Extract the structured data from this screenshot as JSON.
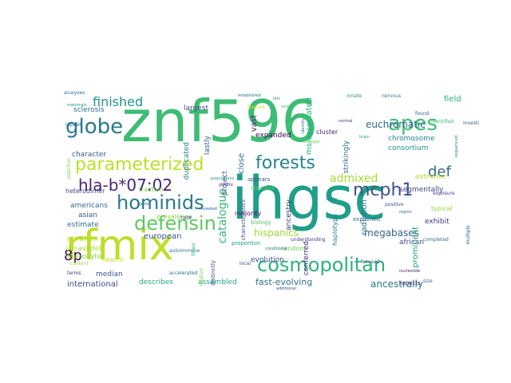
{
  "words": [
    {
      "text": "znf596",
      "color": "#3dbc74"
    },
    {
      "text": "ihgsc",
      "color": "#1f9e89"
    },
    {
      "text": "rfmix",
      "color": "#bddf26"
    },
    {
      "text": "parameterized",
      "color": "#bddf26"
    },
    {
      "text": "cosmopolitan",
      "color": "#2db27d"
    },
    {
      "text": "forests",
      "color": "#26828e"
    },
    {
      "text": "hominids",
      "color": "#2a788e"
    },
    {
      "text": "defensin",
      "color": "#5ec962"
    },
    {
      "text": "globe",
      "color": "#2a788e"
    },
    {
      "text": "apes",
      "color": "#3fbc73"
    },
    {
      "text": "mcph1",
      "color": "#3b528b"
    },
    {
      "text": "hla-b*07:02",
      "color": "#482475"
    },
    {
      "text": "admixed",
      "color": "#a8db34"
    },
    {
      "text": "def",
      "color": "#31688e"
    },
    {
      "text": "finished",
      "color": "#21918c"
    },
    {
      "text": "8p",
      "color": "#440154"
    },
    {
      "text": "catalogue",
      "color": "#35b779"
    },
    {
      "text": "megabases",
      "color": "#33638d"
    },
    {
      "text": "euchromatic",
      "color": "#31688e"
    },
    {
      "text": "hispanics",
      "color": "#a0da39"
    },
    {
      "text": "ancestrally",
      "color": "#2a788e"
    },
    {
      "text": "fast-evolving",
      "color": "#2d708e"
    },
    {
      "text": "international",
      "color": "#3e4989"
    },
    {
      "text": "describes",
      "color": "#22a884"
    },
    {
      "text": "assembled",
      "color": "#22a884"
    },
    {
      "text": "median",
      "color": "#3b528b"
    },
    {
      "text": "evolution",
      "color": "#3e4a89"
    },
    {
      "text": "chromosome",
      "color": "#26828e"
    },
    {
      "text": "consortium",
      "color": "#21918c"
    },
    {
      "text": "segmentally",
      "color": "#3e4989"
    },
    {
      "text": "african",
      "color": "#414487"
    },
    {
      "text": "random",
      "color": "#6ece58"
    },
    {
      "text": "conferred",
      "color": "#472d7b"
    },
    {
      "text": "ancestry",
      "color": "#443983"
    },
    {
      "text": "prominent",
      "color": "#1f9e89"
    },
    {
      "text": "radiation",
      "color": "#2c728e"
    },
    {
      "text": "exhibit",
      "color": "#46327e"
    },
    {
      "text": "typical",
      "color": "#95d840"
    },
    {
      "text": "field",
      "color": "#29af7f"
    },
    {
      "text": "extreme",
      "color": "#b5de2b"
    },
    {
      "text": "ms-associated",
      "color": "#25ab82"
    },
    {
      "text": "expanded",
      "color": "#440154"
    },
    {
      "text": "vast",
      "color": "#482878"
    },
    {
      "text": "close",
      "color": "#2c728e"
    },
    {
      "text": "project",
      "color": "#38588c"
    },
    {
      "text": "lastly",
      "color": "#33638d"
    },
    {
      "text": "largest",
      "color": "#3f4788"
    },
    {
      "text": "duplicated",
      "color": "#277f8e"
    },
    {
      "text": "european",
      "color": "#3b528b"
    },
    {
      "text": "prevalence",
      "color": "#86d549"
    },
    {
      "text": "fraction",
      "color": "#7ad151"
    },
    {
      "text": "heterodimer",
      "color": "#404688"
    },
    {
      "text": "americans",
      "color": "#2f6c8e"
    },
    {
      "text": "asian",
      "color": "#3a538b"
    },
    {
      "text": "character",
      "color": "#365c8d"
    },
    {
      "text": "sclerosis",
      "color": "#2d718e"
    },
    {
      "text": "estimate",
      "color": "#2e6f8e"
    },
    {
      "text": "leukocyte",
      "color": "#8bd646"
    },
    {
      "text": "northern",
      "color": "#b8de29"
    },
    {
      "text": "ultraviolet",
      "color": "#addc30"
    },
    {
      "text": "search",
      "color": "#c2df23"
    },
    {
      "text": "accelerated",
      "color": "#2e6e8e"
    },
    {
      "text": "autoimmune",
      "color": "#2a768e"
    },
    {
      "text": "rate",
      "color": "#404588"
    },
    {
      "text": "disease",
      "color": "#5ac864"
    },
    {
      "text": "haplotype",
      "color": "#27808e"
    },
    {
      "text": "strikingly",
      "color": "#32658e"
    },
    {
      "text": "cluster",
      "color": "#482475"
    },
    {
      "text": "majority",
      "color": "#471164"
    },
    {
      "text": "appears",
      "color": "#375a8c"
    },
    {
      "text": "distinctly",
      "color": "#3f4889"
    },
    {
      "text": "proportion",
      "color": "#1fa088"
    },
    {
      "text": "characteristics",
      "color": "#3c4f8a"
    },
    {
      "text": "biology",
      "color": "#4ec36b"
    },
    {
      "text": "understanding",
      "color": "#453581"
    },
    {
      "text": "innate",
      "color": "#1f958b"
    },
    {
      "text": "nervous",
      "color": "#2b758e"
    },
    {
      "text": "explained",
      "color": "#31688e"
    },
    {
      "text": "aspects",
      "color": "#472c7a"
    },
    {
      "text": "focused",
      "color": "#37598c"
    },
    {
      "text": "positive",
      "color": "#3b518b"
    },
    {
      "text": "completed",
      "color": "#2f6b8e"
    },
    {
      "text": "size",
      "color": "#34608d"
    },
    {
      "text": "relative",
      "color": "#7fd34e"
    },
    {
      "text": "times",
      "color": "#2ab07f"
    },
    {
      "text": "local",
      "color": "#3a548c"
    },
    {
      "text": "content",
      "color": "#9dd93b"
    },
    {
      "text": "terms",
      "color": "#46307e"
    },
    {
      "text": "selection",
      "color": "#7ad151"
    },
    {
      "text": "repeat",
      "color": "#2e6d8e"
    },
    {
      "text": "mammals",
      "color": "#20928c"
    },
    {
      "text": "feature",
      "color": "#cae11f"
    },
    {
      "text": "established",
      "color": "#2c728e"
    },
    {
      "text": "loci",
      "color": "#2e6f8e"
    },
    {
      "text": "additional",
      "color": "#3a548c"
    },
    {
      "text": "populations",
      "color": "#20928c"
    },
    {
      "text": "genetic",
      "color": "#46327e"
    },
    {
      "text": "identity",
      "color": "#31688e"
    },
    {
      "text": "exposure",
      "color": "#443a83"
    },
    {
      "text": "multiple",
      "color": "#2f6b8e"
    },
    {
      "text": "nucleotide",
      "color": "#48186a"
    },
    {
      "text": "investigate",
      "color": "#38588c"
    },
    {
      "text": "sequenced",
      "color": "#25858e"
    },
    {
      "text": "origin",
      "color": "#287d8e"
    },
    {
      "text": "region",
      "color": "#2c738e"
    },
    {
      "text": "brain",
      "color": "#20a386"
    },
    {
      "text": "genes",
      "color": "#2d708e"
    },
    {
      "text": "revealed",
      "color": "#34618d"
    },
    {
      "text": "unique",
      "color": "#3bbb75"
    },
    {
      "text": "conditional",
      "color": "#2a778e"
    },
    {
      "text": "normal",
      "color": "#453781"
    },
    {
      "text": "found",
      "color": "#32658e"
    },
    {
      "text": "identified",
      "color": "#35b779"
    },
    {
      "text": "collagen",
      "color": "#6ccd5a"
    },
    {
      "text": "analyses",
      "color": "#2c728e"
    }
  ]
}
